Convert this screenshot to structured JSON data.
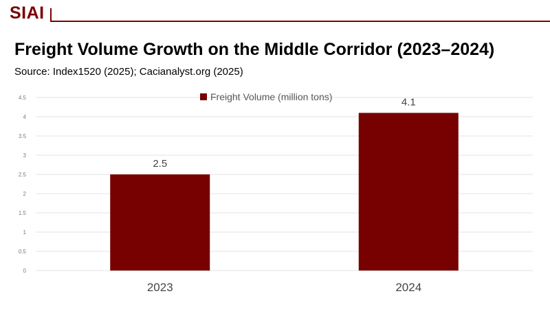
{
  "brand": {
    "name": "SIAI"
  },
  "header": {
    "title": "Freight Volume Growth on the Middle Corridor (2023–2024)",
    "source": "Source: Index1520 (2025); Cacianalyst.org (2025)"
  },
  "colors": {
    "brand": "#7a0000",
    "bar": "#770000",
    "grid": "#e3e3e3",
    "tick_text": "#7a7a7a",
    "label_text": "#444444"
  },
  "chart_data": {
    "type": "bar",
    "categories": [
      "2023",
      "2024"
    ],
    "series": [
      {
        "name": "Freight Volume (million tons)",
        "values": [
          2.5,
          4.1
        ]
      }
    ],
    "title": "",
    "xlabel": "",
    "ylabel": "",
    "ylim": [
      0,
      4.5
    ],
    "yticks": [
      "0",
      "0.5",
      "1",
      "1.5",
      "2",
      "2.5",
      "3",
      "3.5",
      "4",
      "4.5"
    ],
    "data_labels": [
      "2.5",
      "4.1"
    ],
    "grid": true,
    "legend": "top-center"
  }
}
